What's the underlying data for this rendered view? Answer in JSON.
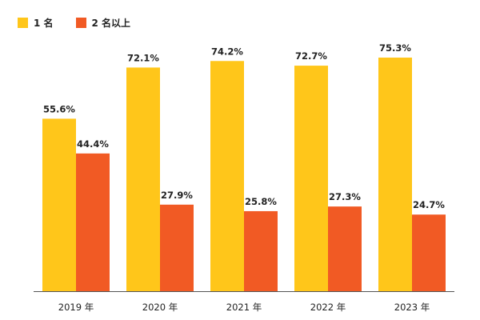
{
  "chart_data": {
    "type": "bar",
    "categories": [
      "2019 年",
      "2020 年",
      "2021 年",
      "2022 年",
      "2023 年"
    ],
    "series": [
      {
        "name": "1 名",
        "color": "#FFC61A",
        "values": [
          55.6,
          72.1,
          74.2,
          72.7,
          75.3
        ],
        "labels": [
          "55.6%",
          "72.1%",
          "74.2%",
          "72.7%",
          "75.3%"
        ]
      },
      {
        "name": "2 名以上",
        "color": "#F15A24",
        "values": [
          44.4,
          27.9,
          25.8,
          27.3,
          24.7
        ],
        "labels": [
          "44.4%",
          "27.9%",
          "25.8%",
          "27.3%",
          "24.7%"
        ]
      }
    ],
    "title": "",
    "xlabel": "",
    "ylabel": "",
    "ylim": [
      0,
      80
    ],
    "grid": false,
    "legend_position": "top-left"
  }
}
